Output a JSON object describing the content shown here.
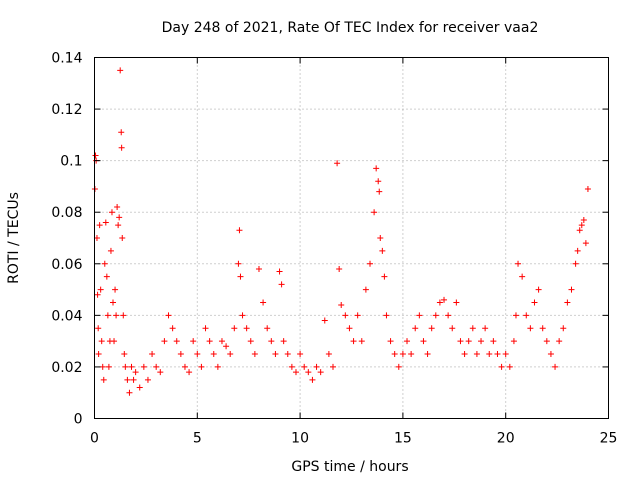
{
  "chart_data": {
    "type": "scatter",
    "title": "Day 248 of 2021, Rate Of TEC Index for receiver vaa2",
    "xlabel": "GPS time / hours",
    "ylabel": "ROTI / TECUs",
    "xlim": [
      0,
      25
    ],
    "ylim": [
      0,
      0.14
    ],
    "x_ticks": [
      0,
      5,
      10,
      15,
      20,
      25
    ],
    "y_ticks": [
      0,
      0.02,
      0.04,
      0.06,
      0.08,
      0.1,
      0.12,
      0.14
    ],
    "x_tick_labels": [
      "0",
      "5",
      "10",
      "15",
      "20",
      "25"
    ],
    "y_tick_labels": [
      "0",
      "0.02",
      "0.04",
      "0.06",
      "0.08",
      "0.1",
      "0.12",
      "0.14"
    ],
    "grid": true,
    "marker": "plus",
    "marker_color": "#ff0000",
    "series": [
      {
        "x": [
          0.02,
          0.05,
          0.08,
          0.12,
          0.15,
          0.18,
          0.2,
          0.25,
          0.3,
          0.35,
          0.4,
          0.45,
          0.5,
          0.55,
          0.6,
          0.65,
          0.7,
          0.75,
          0.8,
          0.85,
          0.9,
          0.95,
          1.0,
          1.05,
          1.1,
          1.15,
          1.2,
          1.25,
          1.3,
          1.32,
          1.35,
          1.4,
          1.45,
          1.5,
          1.6,
          1.7,
          1.8,
          1.9,
          2.0,
          2.2,
          2.4,
          2.6,
          2.8,
          3.0,
          3.2,
          3.4,
          3.6,
          3.8,
          4.0,
          4.2,
          4.4,
          4.6,
          4.8,
          5.0,
          5.2,
          5.4,
          5.6,
          5.8,
          6.0,
          6.2,
          6.4,
          6.6,
          6.8,
          7.0,
          7.05,
          7.1,
          7.2,
          7.4,
          7.6,
          7.8,
          8.0,
          8.2,
          8.4,
          8.6,
          8.8,
          9.0,
          9.1,
          9.2,
          9.4,
          9.6,
          9.8,
          10.0,
          10.2,
          10.4,
          10.6,
          10.8,
          11.0,
          11.2,
          11.4,
          11.6,
          11.8,
          11.9,
          12.0,
          12.2,
          12.4,
          12.6,
          12.8,
          13.0,
          13.2,
          13.4,
          13.6,
          13.7,
          13.8,
          13.85,
          13.9,
          14.0,
          14.1,
          14.2,
          14.4,
          14.6,
          14.8,
          15.0,
          15.2,
          15.4,
          15.6,
          15.8,
          16.0,
          16.2,
          16.4,
          16.6,
          16.8,
          17.0,
          17.2,
          17.4,
          17.6,
          17.8,
          18.0,
          18.2,
          18.4,
          18.6,
          18.8,
          19.0,
          19.2,
          19.4,
          19.6,
          19.8,
          20.0,
          20.2,
          20.4,
          20.5,
          20.6,
          20.8,
          21.0,
          21.2,
          21.4,
          21.6,
          21.8,
          22.0,
          22.2,
          22.4,
          22.6,
          22.8,
          23.0,
          23.2,
          23.4,
          23.5,
          23.6,
          23.7,
          23.8,
          23.9,
          24.0
        ],
        "y": [
          0.089,
          0.102,
          0.1,
          0.07,
          0.048,
          0.035,
          0.025,
          0.075,
          0.05,
          0.03,
          0.02,
          0.015,
          0.06,
          0.076,
          0.055,
          0.04,
          0.02,
          0.03,
          0.065,
          0.08,
          0.045,
          0.03,
          0.05,
          0.04,
          0.082,
          0.075,
          0.078,
          0.135,
          0.111,
          0.105,
          0.07,
          0.04,
          0.025,
          0.02,
          0.015,
          0.01,
          0.02,
          0.015,
          0.018,
          0.012,
          0.02,
          0.015,
          0.025,
          0.02,
          0.018,
          0.03,
          0.04,
          0.035,
          0.03,
          0.025,
          0.02,
          0.018,
          0.03,
          0.025,
          0.02,
          0.035,
          0.03,
          0.025,
          0.02,
          0.03,
          0.028,
          0.025,
          0.035,
          0.06,
          0.073,
          0.055,
          0.04,
          0.035,
          0.03,
          0.025,
          0.058,
          0.045,
          0.035,
          0.03,
          0.025,
          0.057,
          0.052,
          0.03,
          0.025,
          0.02,
          0.018,
          0.025,
          0.02,
          0.018,
          0.015,
          0.02,
          0.018,
          0.038,
          0.025,
          0.02,
          0.099,
          0.058,
          0.044,
          0.04,
          0.035,
          0.03,
          0.04,
          0.03,
          0.05,
          0.06,
          0.08,
          0.097,
          0.092,
          0.088,
          0.07,
          0.065,
          0.055,
          0.04,
          0.03,
          0.025,
          0.02,
          0.025,
          0.03,
          0.025,
          0.035,
          0.04,
          0.03,
          0.025,
          0.035,
          0.04,
          0.045,
          0.046,
          0.04,
          0.035,
          0.045,
          0.03,
          0.025,
          0.03,
          0.035,
          0.025,
          0.03,
          0.035,
          0.025,
          0.03,
          0.025,
          0.02,
          0.025,
          0.02,
          0.03,
          0.04,
          0.06,
          0.055,
          0.04,
          0.035,
          0.045,
          0.05,
          0.035,
          0.03,
          0.025,
          0.02,
          0.03,
          0.035,
          0.045,
          0.05,
          0.06,
          0.065,
          0.073,
          0.075,
          0.077,
          0.068,
          0.089
        ]
      }
    ]
  }
}
